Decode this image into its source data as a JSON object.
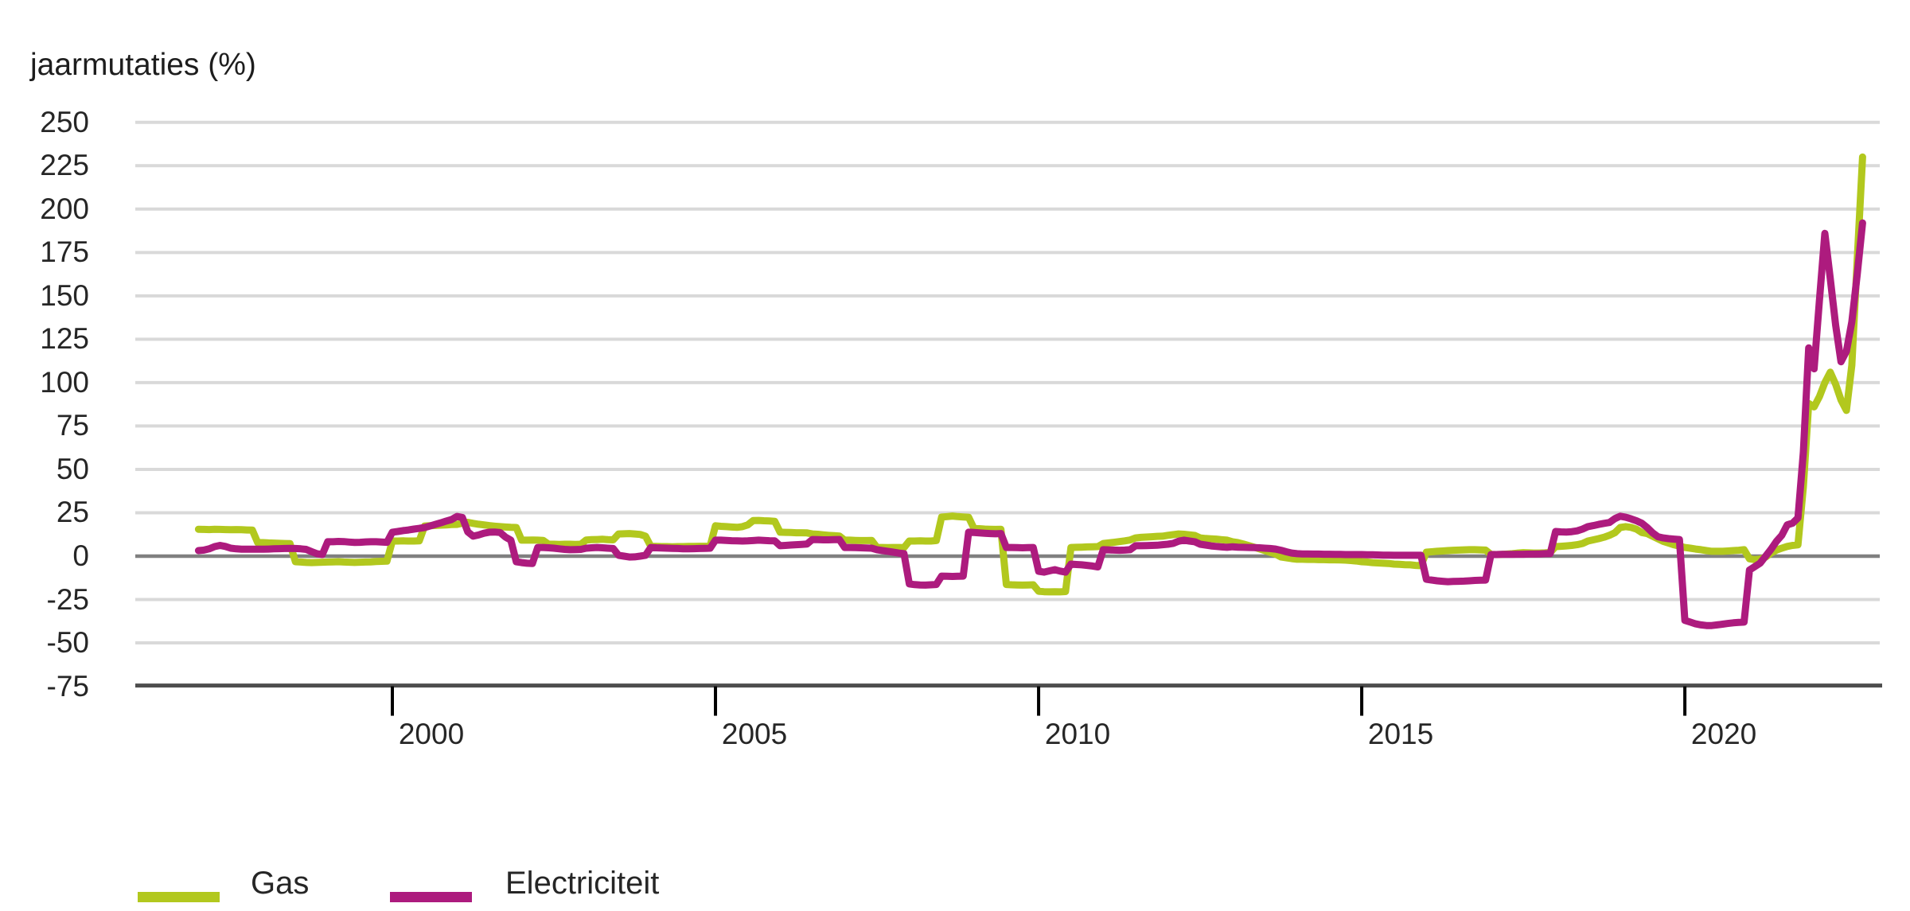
{
  "title": "jaarmutaties (%)",
  "colors": {
    "gas": "#b2c81e",
    "electricity": "#ad1b7e",
    "grid": "#d9d9d9",
    "zero_line": "#808080",
    "axis": "#4d4d4d",
    "tick": "#000000",
    "text": "#262626",
    "background": "#ffffff"
  },
  "legend": {
    "items": [
      {
        "label": "Gas",
        "color": "#b2c81e"
      },
      {
        "label": "Electriciteit",
        "color": "#ad1b7e"
      }
    ]
  },
  "chart_data": {
    "type": "line",
    "title": "jaarmutaties (%)",
    "ylabel": "jaarmutaties (%)",
    "xlabel": "",
    "frequency": "monthly",
    "x_start": "1997-01",
    "x_end": "2022-10",
    "x_tick_years": [
      2000,
      2005,
      2010,
      2015,
      2020
    ],
    "y_ticks": [
      250,
      225,
      200,
      175,
      150,
      125,
      100,
      75,
      50,
      25,
      0,
      -25,
      -50,
      -75
    ],
    "ylim": [
      -75,
      250
    ],
    "grid": true,
    "zero_line": true,
    "legend_position": "bottom",
    "series": [
      {
        "name": "Gas",
        "color": "#b2c81e",
        "values": [
          15.5,
          15.4,
          15.3,
          15.5,
          15.4,
          15.3,
          15.2,
          15.3,
          15.2,
          15.1,
          15.0,
          7.8,
          7.8,
          7.6,
          7.5,
          7.4,
          7.3,
          7.2,
          -3.2,
          -3.4,
          -3.6,
          -3.7,
          -3.6,
          -3.5,
          -3.4,
          -3.3,
          -3.2,
          -3.4,
          -3.5,
          -3.6,
          -3.5,
          -3.4,
          -3.3,
          -3.1,
          -3.0,
          -2.9,
          8.7,
          8.7,
          8.8,
          8.7,
          8.7,
          8.8,
          17.4,
          17.5,
          17.7,
          17.9,
          18.0,
          18.2,
          18.3,
          19.0,
          19.5,
          18.9,
          18.4,
          18.0,
          17.6,
          17.3,
          17.0,
          16.8,
          16.6,
          16.5,
          9.2,
          9.2,
          9.3,
          9.2,
          9.1,
          6.9,
          6.9,
          6.8,
          6.9,
          6.9,
          6.8,
          6.9,
          9.3,
          9.5,
          9.6,
          9.7,
          9.5,
          9.4,
          12.8,
          12.9,
          13.0,
          12.8,
          12.5,
          11.5,
          5.7,
          5.6,
          5.5,
          5.5,
          5.4,
          5.5,
          5.5,
          5.6,
          5.6,
          5.7,
          5.7,
          5.8,
          17.5,
          17.2,
          17.0,
          16.8,
          16.6,
          17.0,
          18.0,
          20.5,
          20.6,
          20.4,
          20.3,
          20.1,
          13.8,
          13.7,
          13.6,
          13.5,
          13.5,
          13.4,
          12.8,
          12.6,
          12.3,
          12.0,
          11.8,
          11.6,
          9.2,
          9.2,
          9.1,
          9.0,
          9.0,
          9.1,
          5.0,
          5.0,
          4.9,
          5.0,
          5.0,
          4.9,
          8.7,
          8.7,
          8.8,
          8.7,
          8.7,
          9.0,
          22.5,
          22.8,
          23.1,
          22.8,
          22.6,
          22.4,
          16.0,
          15.8,
          15.6,
          15.5,
          15.4,
          15.5,
          -16.3,
          -16.5,
          -16.6,
          -16.7,
          -16.6,
          -16.5,
          -20.2,
          -20.5,
          -20.6,
          -20.5,
          -20.6,
          -20.4,
          5.0,
          5.1,
          5.2,
          5.3,
          5.4,
          5.5,
          7.3,
          7.6,
          8.0,
          8.4,
          8.8,
          9.3,
          10.5,
          10.8,
          11.0,
          11.2,
          11.4,
          11.5,
          12.0,
          12.4,
          12.8,
          12.6,
          12.3,
          11.9,
          10.5,
          10.2,
          10.0,
          9.8,
          9.5,
          9.2,
          8.3,
          7.8,
          7.0,
          6.1,
          5.2,
          4.2,
          3.2,
          2.2,
          1.2,
          -0.5,
          -0.9,
          -1.4,
          -1.8,
          -1.8,
          -1.9,
          -1.9,
          -2.0,
          -2.0,
          -2.1,
          -2.1,
          -2.2,
          -2.3,
          -2.5,
          -2.8,
          -3.2,
          -3.4,
          -3.7,
          -3.9,
          -4.1,
          -4.2,
          -4.6,
          -4.7,
          -4.9,
          -5.0,
          -5.3,
          -5.5,
          2.3,
          2.5,
          2.8,
          3.0,
          3.2,
          3.4,
          3.5,
          3.6,
          3.7,
          3.7,
          3.6,
          3.5,
          1.0,
          0.9,
          1.0,
          1.2,
          1.4,
          1.8,
          2.0,
          1.9,
          1.8,
          1.8,
          1.9,
          2.1,
          5.5,
          5.7,
          5.9,
          6.2,
          6.6,
          7.3,
          8.7,
          9.4,
          10.1,
          10.9,
          12.0,
          13.5,
          16.5,
          17.0,
          16.6,
          15.6,
          13.6,
          13.0,
          11.5,
          10.0,
          8.5,
          7.5,
          6.5,
          5.8,
          5.0,
          4.6,
          4.1,
          3.7,
          3.2,
          2.8,
          2.8,
          2.8,
          3.0,
          3.2,
          3.4,
          3.7,
          -1.5,
          -2.0,
          -1.7,
          -0.5,
          1.8,
          3.5,
          4.6,
          5.6,
          6.2,
          6.5,
          40,
          88,
          86,
          92,
          100,
          106,
          99,
          90,
          84,
          110,
          170,
          230
        ]
      },
      {
        "name": "Electriciteit",
        "color": "#ad1b7e",
        "values": [
          3.2,
          3.5,
          4.2,
          5.5,
          6.2,
          5.6,
          4.6,
          4.2,
          4.0,
          4.0,
          4.0,
          4.0,
          4.0,
          4.1,
          4.2,
          4.3,
          4.4,
          4.5,
          4.4,
          4.2,
          3.9,
          2.6,
          1.4,
          0.9,
          8.3,
          8.3,
          8.5,
          8.4,
          8.1,
          7.9,
          8.0,
          8.2,
          8.3,
          8.3,
          8.1,
          8.0,
          13.8,
          14.2,
          14.7,
          15.1,
          15.6,
          16.0,
          16.5,
          17.4,
          18.3,
          19.2,
          20.2,
          21.1,
          22.9,
          22.3,
          14.0,
          11.5,
          12.2,
          13.2,
          13.8,
          13.9,
          13.6,
          11.0,
          9.2,
          -3.2,
          -3.7,
          -4.1,
          -4.2,
          5.0,
          5.0,
          4.8,
          4.6,
          4.2,
          3.9,
          3.7,
          3.8,
          3.9,
          4.6,
          4.8,
          5.0,
          4.8,
          4.6,
          4.4,
          0.5,
          0.0,
          -0.5,
          -0.4,
          0.0,
          0.5,
          5.0,
          4.8,
          4.7,
          4.6,
          4.5,
          4.4,
          4.2,
          4.2,
          4.3,
          4.4,
          4.5,
          4.6,
          9.2,
          9.2,
          9.1,
          8.9,
          8.8,
          8.7,
          8.8,
          9.0,
          9.2,
          9.1,
          8.9,
          8.8,
          6.0,
          6.2,
          6.4,
          6.6,
          6.8,
          7.0,
          9.6,
          9.5,
          9.4,
          9.4,
          9.5,
          9.6,
          5.0,
          5.0,
          4.9,
          4.8,
          4.7,
          4.6,
          3.7,
          3.2,
          2.8,
          2.3,
          1.8,
          1.4,
          -16.0,
          -16.4,
          -16.6,
          -16.7,
          -16.5,
          -16.3,
          -11.5,
          -11.6,
          -11.7,
          -11.6,
          -11.5,
          13.8,
          13.6,
          13.4,
          13.2,
          13.0,
          12.9,
          13.0,
          5.0,
          5.0,
          4.9,
          4.8,
          4.9,
          5.0,
          -8.7,
          -9.2,
          -8.5,
          -7.8,
          -8.6,
          -9.2,
          -4.6,
          -4.8,
          -5.0,
          -5.3,
          -5.7,
          -6.2,
          3.7,
          3.6,
          3.5,
          3.4,
          3.5,
          3.7,
          6.0,
          6.0,
          6.1,
          6.2,
          6.3,
          6.6,
          6.9,
          7.4,
          8.6,
          9.2,
          8.7,
          8.3,
          6.9,
          6.4,
          5.9,
          5.6,
          5.3,
          5.1,
          5.4,
          5.2,
          5.1,
          5.0,
          4.9,
          4.8,
          4.6,
          4.4,
          4.1,
          3.4,
          2.5,
          1.8,
          1.4,
          1.3,
          1.3,
          1.2,
          1.2,
          1.1,
          1.1,
          1.0,
          1.0,
          0.9,
          0.9,
          0.9,
          0.9,
          0.8,
          0.8,
          0.7,
          0.6,
          0.6,
          0.5,
          0.5,
          0.5,
          0.5,
          0.5,
          0.5,
          -13.3,
          -13.8,
          -14.2,
          -14.5,
          -14.7,
          -14.6,
          -14.5,
          -14.4,
          -14.2,
          -14.0,
          -13.9,
          -13.8,
          0.9,
          0.9,
          1.0,
          1.0,
          1.0,
          1.1,
          1.1,
          1.2,
          1.2,
          1.3,
          1.4,
          1.5,
          14.2,
          14.0,
          13.9,
          14.1,
          14.6,
          15.6,
          17.0,
          17.6,
          18.3,
          18.9,
          19.4,
          21.6,
          23.0,
          22.4,
          21.5,
          20.4,
          19.0,
          16.5,
          13.5,
          11.2,
          10.5,
          10.1,
          9.8,
          9.6,
          -37.0,
          -38.0,
          -39.0,
          -39.6,
          -40.0,
          -40.0,
          -39.6,
          -39.2,
          -38.8,
          -38.4,
          -38.2,
          -38.0,
          -8.0,
          -6.0,
          -4.0,
          0.0,
          4.0,
          8.5,
          12.0,
          18.0,
          19.0,
          22.0,
          60,
          120,
          108,
          148,
          186,
          160,
          133,
          112,
          118,
          135,
          162,
          192
        ]
      }
    ]
  }
}
